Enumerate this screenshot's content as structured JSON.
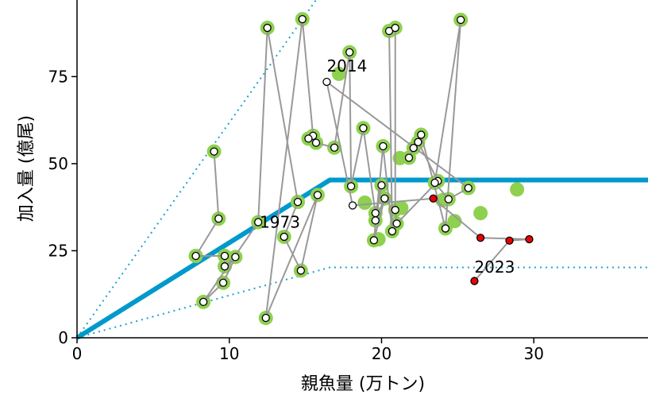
{
  "chart_data": {
    "type": "scatter",
    "xlabel": "親魚量 (万トン)",
    "ylabel": "加入量 (億尾)",
    "xlim": [
      0,
      37.5
    ],
    "ylim": [
      0,
      97
    ],
    "xticks": [
      0,
      10,
      20,
      30
    ],
    "yticks": [
      0,
      25,
      50,
      75
    ],
    "colors": {
      "hockey_stick": "#0099cc",
      "bounds": "#1aa3cc",
      "path": "#999999",
      "halo": "#8ed14f",
      "recent": "#ee0000"
    },
    "hockey_stick": [
      [
        0,
        0
      ],
      [
        16.6,
        45.3
      ],
      [
        37.5,
        45.3
      ]
    ],
    "upper_bound": [
      [
        0,
        0
      ],
      [
        15.7,
        97
      ]
    ],
    "lower_bound": [
      [
        0,
        0
      ],
      [
        16.6,
        20.2
      ],
      [
        37.5,
        20.2
      ]
    ],
    "green_only": [
      [
        17.2,
        75.8
      ],
      [
        18.9,
        38.8
      ],
      [
        19.8,
        28.3
      ],
      [
        21.2,
        51.6
      ],
      [
        21.3,
        37.3
      ],
      [
        24.0,
        39.5
      ],
      [
        24.8,
        33.5
      ],
      [
        26.5,
        35.8
      ],
      [
        28.9,
        42.6
      ]
    ],
    "trajectory": [
      [
        9.0,
        53.5
      ],
      [
        9.3,
        34.2
      ],
      [
        7.8,
        23.5
      ],
      [
        9.7,
        23.5
      ],
      [
        9.7,
        20.5
      ],
      [
        10.4,
        23.2
      ],
      [
        9.6,
        15.8
      ],
      [
        8.3,
        10.3
      ],
      [
        11.9,
        33.2
      ],
      [
        12.5,
        89.0
      ],
      [
        14.5,
        39.0
      ],
      [
        13.6,
        29.0
      ],
      [
        14.7,
        19.3
      ],
      [
        15.8,
        41.0
      ],
      [
        12.4,
        5.7
      ],
      [
        14.8,
        91.5
      ],
      [
        15.5,
        58.0
      ],
      [
        15.2,
        57.2
      ],
      [
        15.7,
        56.0
      ],
      [
        16.9,
        54.6
      ],
      [
        17.9,
        82.0
      ],
      [
        18.0,
        43.5
      ],
      [
        18.8,
        60.2
      ],
      [
        19.6,
        35.8
      ],
      [
        20.0,
        43.8
      ],
      [
        19.6,
        33.7
      ],
      [
        20.2,
        40.0
      ],
      [
        19.5,
        28.0
      ],
      [
        20.1,
        55.0
      ],
      [
        20.7,
        30.6
      ],
      [
        20.5,
        88.1
      ],
      [
        20.9,
        89.0
      ],
      [
        20.9,
        36.7
      ],
      [
        21.0,
        32.8
      ],
      [
        23.7,
        45.0
      ],
      [
        22.4,
        56.2
      ],
      [
        21.8,
        51.7
      ],
      [
        22.1,
        54.5
      ],
      [
        22.6,
        58.3
      ],
      [
        24.2,
        31.4
      ],
      [
        25.2,
        91.3
      ],
      [
        23.5,
        44.5
      ],
      [
        24.4,
        39.8
      ],
      [
        25.7,
        43.0
      ],
      [
        16.4,
        73.5
      ],
      [
        18.1,
        38.0
      ],
      [
        23.4,
        40.0
      ],
      [
        26.5,
        28.7
      ],
      [
        29.7,
        28.3
      ],
      [
        28.4,
        27.9
      ],
      [
        26.1,
        16.3
      ]
    ],
    "green_halo_count": 44,
    "recent_start_index": 46,
    "annotations": [
      {
        "text": "1973",
        "x": 12.0,
        "y": 33.2
      },
      {
        "text": "2014",
        "x": 16.4,
        "y": 78.0
      },
      {
        "text": "2023",
        "x": 26.1,
        "y": 20.3
      }
    ]
  }
}
